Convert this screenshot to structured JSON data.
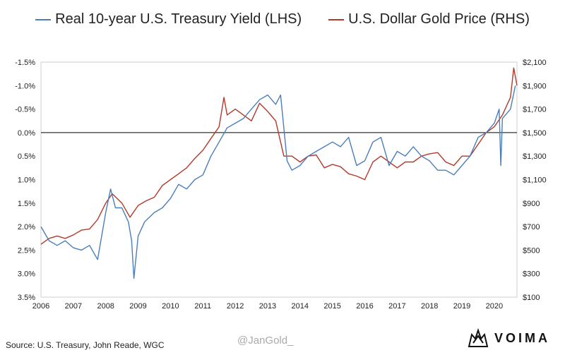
{
  "chart_data": {
    "type": "line",
    "title": "",
    "x_ticks": [
      "2006",
      "2007",
      "2008",
      "2009",
      "2010",
      "2011",
      "2012",
      "2013",
      "2014",
      "2015",
      "2016",
      "2017",
      "2018",
      "2019",
      "2020"
    ],
    "xlim": [
      2006.0,
      2020.7
    ],
    "left_axis": {
      "ylim": [
        3.5,
        -1.5
      ],
      "inverted": true,
      "ticks": [
        -1.5,
        -1.0,
        -0.5,
        0.0,
        0.5,
        1.0,
        1.5,
        2.0,
        2.5,
        3.0,
        3.5
      ],
      "tick_labels": [
        "-1.5%",
        "-1.0%",
        "-0.5%",
        "0.0%",
        "0.5%",
        "1.0%",
        "1.5%",
        "2.0%",
        "2.5%",
        "3.0%",
        "3.5%"
      ],
      "reference_line": 0.0
    },
    "right_axis": {
      "ylim": [
        100,
        2100
      ],
      "ticks": [
        100,
        300,
        500,
        700,
        900,
        1100,
        1300,
        1500,
        1700,
        1900,
        2100
      ],
      "tick_labels": [
        "$100",
        "$300",
        "$500",
        "$700",
        "$900",
        "$1,100",
        "$1,300",
        "$1,500",
        "$1,700",
        "$1,900",
        "$2,100"
      ]
    },
    "series": [
      {
        "name": "Real 10-year U.S. Treasury Yield (LHS)",
        "axis": "left",
        "color": "#4a7ebb",
        "x": [
          2006.0,
          2006.25,
          2006.5,
          2006.75,
          2007.0,
          2007.25,
          2007.5,
          2007.75,
          2008.0,
          2008.15,
          2008.3,
          2008.5,
          2008.7,
          2008.8,
          2008.87,
          2009.0,
          2009.2,
          2009.5,
          2009.75,
          2010.0,
          2010.25,
          2010.5,
          2010.75,
          2011.0,
          2011.25,
          2011.5,
          2011.75,
          2012.0,
          2012.25,
          2012.5,
          2012.75,
          2013.0,
          2013.25,
          2013.4,
          2013.6,
          2013.75,
          2014.0,
          2014.25,
          2014.5,
          2014.75,
          2015.0,
          2015.25,
          2015.5,
          2015.75,
          2016.0,
          2016.25,
          2016.5,
          2016.75,
          2017.0,
          2017.25,
          2017.5,
          2017.75,
          2018.0,
          2018.25,
          2018.5,
          2018.75,
          2019.0,
          2019.25,
          2019.5,
          2019.75,
          2020.0,
          2020.15,
          2020.2,
          2020.25,
          2020.5,
          2020.65
        ],
        "y": [
          2.0,
          2.3,
          2.4,
          2.3,
          2.45,
          2.5,
          2.4,
          2.7,
          1.7,
          1.2,
          1.6,
          1.6,
          1.9,
          2.3,
          3.1,
          2.2,
          1.9,
          1.7,
          1.6,
          1.4,
          1.1,
          1.2,
          1.0,
          0.9,
          0.5,
          0.2,
          -0.1,
          -0.2,
          -0.3,
          -0.5,
          -0.7,
          -0.8,
          -0.6,
          -0.8,
          0.6,
          0.8,
          0.7,
          0.5,
          0.4,
          0.3,
          0.2,
          0.3,
          0.1,
          0.7,
          0.6,
          0.2,
          0.1,
          0.7,
          0.4,
          0.5,
          0.3,
          0.5,
          0.6,
          0.8,
          0.8,
          0.9,
          0.7,
          0.5,
          0.1,
          0.0,
          -0.2,
          -0.5,
          0.7,
          -0.3,
          -0.5,
          -1.0
        ]
      },
      {
        "name": "U.S. Dollar Gold Price (RHS)",
        "axis": "right",
        "color": "#b3392b",
        "x": [
          2006.0,
          2006.25,
          2006.5,
          2006.75,
          2007.0,
          2007.25,
          2007.5,
          2007.75,
          2008.0,
          2008.2,
          2008.5,
          2008.75,
          2009.0,
          2009.25,
          2009.5,
          2009.75,
          2010.0,
          2010.25,
          2010.5,
          2010.75,
          2011.0,
          2011.25,
          2011.5,
          2011.65,
          2011.75,
          2012.0,
          2012.25,
          2012.5,
          2012.75,
          2013.0,
          2013.25,
          2013.5,
          2013.75,
          2014.0,
          2014.25,
          2014.5,
          2014.75,
          2015.0,
          2015.25,
          2015.5,
          2015.75,
          2016.0,
          2016.25,
          2016.5,
          2016.75,
          2017.0,
          2017.25,
          2017.5,
          2017.75,
          2018.0,
          2018.25,
          2018.5,
          2018.75,
          2019.0,
          2019.25,
          2019.5,
          2019.75,
          2020.0,
          2020.25,
          2020.5,
          2020.6,
          2020.7
        ],
        "y": [
          550,
          600,
          620,
          600,
          630,
          670,
          680,
          760,
          900,
          980,
          900,
          780,
          880,
          920,
          950,
          1050,
          1100,
          1150,
          1200,
          1280,
          1350,
          1450,
          1550,
          1800,
          1650,
          1700,
          1650,
          1600,
          1750,
          1680,
          1600,
          1300,
          1300,
          1250,
          1300,
          1310,
          1200,
          1230,
          1210,
          1150,
          1130,
          1100,
          1250,
          1300,
          1250,
          1200,
          1250,
          1250,
          1300,
          1320,
          1330,
          1250,
          1220,
          1300,
          1300,
          1400,
          1500,
          1550,
          1650,
          1800,
          2050,
          1900
        ]
      }
    ]
  },
  "source": "Source: U.S. Treasury, John Reade, WGC",
  "watermark": "@JanGold_",
  "logo": {
    "text": "VOIMA",
    "icon": "lion-crest-icon"
  }
}
